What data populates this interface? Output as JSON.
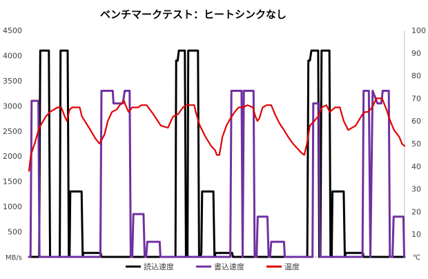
{
  "chart_data": {
    "type": "line",
    "title": "ベンチマークテスト：ヒートシンクなし",
    "y_left": {
      "unit": "MB/s",
      "lim": [
        0,
        4500
      ],
      "ticks": [
        500,
        1000,
        1500,
        2000,
        2500,
        3000,
        3500,
        4000,
        4500
      ]
    },
    "y_right": {
      "unit": "℃",
      "lim": [
        0,
        100
      ],
      "ticks": [
        10,
        20,
        30,
        40,
        50,
        60,
        70,
        80,
        90,
        100
      ]
    },
    "x": {
      "lim": [
        0,
        1000
      ]
    },
    "grid": false,
    "legend_position": "bottom",
    "series": [
      {
        "name": "読込速度",
        "color": "#000000",
        "axis": "left",
        "points": [
          [
            0,
            0
          ],
          [
            27,
            0
          ],
          [
            30,
            4100
          ],
          [
            53,
            4100
          ],
          [
            56,
            0
          ],
          [
            82,
            0
          ],
          [
            84,
            4100
          ],
          [
            103,
            4100
          ],
          [
            106,
            0
          ],
          [
            108,
            0
          ],
          [
            110,
            1300
          ],
          [
            140,
            1300
          ],
          [
            143,
            0
          ],
          [
            145,
            80
          ],
          [
            191,
            80
          ],
          [
            193,
            0
          ],
          [
            390,
            0
          ],
          [
            392,
            3900
          ],
          [
            396,
            3900
          ],
          [
            399,
            4100
          ],
          [
            415,
            4100
          ],
          [
            418,
            0
          ],
          [
            422,
            0
          ],
          [
            424,
            4100
          ],
          [
            450,
            4100
          ],
          [
            453,
            0
          ],
          [
            457,
            0
          ],
          [
            459,
            80
          ],
          [
            461,
            1300
          ],
          [
            491,
            1300
          ],
          [
            494,
            0
          ],
          [
            497,
            80
          ],
          [
            541,
            80
          ],
          [
            543,
            0
          ],
          [
            741,
            0
          ],
          [
            744,
            3900
          ],
          [
            748,
            3900
          ],
          [
            752,
            4100
          ],
          [
            770,
            4100
          ],
          [
            773,
            0
          ],
          [
            776,
            0
          ],
          [
            779,
            4100
          ],
          [
            800,
            4100
          ],
          [
            803,
            0
          ],
          [
            806,
            0
          ],
          [
            808,
            1300
          ],
          [
            838,
            1300
          ],
          [
            841,
            0
          ],
          [
            844,
            80
          ],
          [
            889,
            80
          ],
          [
            891,
            0
          ],
          [
            1000,
            0
          ]
        ]
      },
      {
        "name": "書込速度",
        "color": "#7030A0",
        "axis": "left",
        "points": [
          [
            0,
            0
          ],
          [
            4,
            0
          ],
          [
            7,
            3100
          ],
          [
            25,
            3100
          ],
          [
            28,
            0
          ],
          [
            190,
            0
          ],
          [
            193,
            3300
          ],
          [
            223,
            3300
          ],
          [
            225,
            3050
          ],
          [
            250,
            3050
          ],
          [
            255,
            3300
          ],
          [
            268,
            3300
          ],
          [
            271,
            0
          ],
          [
            275,
            0
          ],
          [
            278,
            850
          ],
          [
            305,
            850
          ],
          [
            308,
            0
          ],
          [
            312,
            0
          ],
          [
            315,
            300
          ],
          [
            348,
            300
          ],
          [
            350,
            0
          ],
          [
            536,
            0
          ],
          [
            539,
            3300
          ],
          [
            566,
            3300
          ],
          [
            569,
            0
          ],
          [
            572,
            3300
          ],
          [
            598,
            3300
          ],
          [
            601,
            0
          ],
          [
            606,
            0
          ],
          [
            609,
            800
          ],
          [
            635,
            800
          ],
          [
            638,
            0
          ],
          [
            642,
            0
          ],
          [
            645,
            300
          ],
          [
            679,
            300
          ],
          [
            681,
            0
          ],
          [
            755,
            0
          ],
          [
            757,
            3050
          ],
          [
            772,
            3050
          ],
          [
            775,
            0
          ],
          [
            888,
            0
          ],
          [
            891,
            3300
          ],
          [
            905,
            3300
          ],
          [
            909,
            0
          ],
          [
            915,
            3300
          ],
          [
            928,
            3050
          ],
          [
            938,
            3050
          ],
          [
            942,
            3300
          ],
          [
            958,
            3300
          ],
          [
            961,
            0
          ],
          [
            968,
            0
          ],
          [
            971,
            800
          ],
          [
            997,
            800
          ],
          [
            999,
            0
          ],
          [
            1000,
            0
          ]
        ]
      },
      {
        "name": "温度",
        "color": "#E00000",
        "axis": "right",
        "points": [
          [
            0,
            38
          ],
          [
            5,
            45
          ],
          [
            15,
            50
          ],
          [
            27,
            57
          ],
          [
            45,
            62
          ],
          [
            56,
            64
          ],
          [
            76,
            66
          ],
          [
            86,
            66
          ],
          [
            95,
            62
          ],
          [
            101,
            60
          ],
          [
            108,
            65
          ],
          [
            115,
            66
          ],
          [
            135,
            66
          ],
          [
            141,
            62
          ],
          [
            160,
            57
          ],
          [
            178,
            52
          ],
          [
            188,
            50
          ],
          [
            201,
            54
          ],
          [
            210,
            60
          ],
          [
            221,
            64
          ],
          [
            233,
            65
          ],
          [
            242,
            67
          ],
          [
            248,
            68
          ],
          [
            253,
            69
          ],
          [
            257,
            67
          ],
          [
            265,
            64
          ],
          [
            275,
            66
          ],
          [
            290,
            66
          ],
          [
            300,
            67
          ],
          [
            313,
            67
          ],
          [
            331,
            63
          ],
          [
            351,
            58
          ],
          [
            370,
            57
          ],
          [
            378,
            60
          ],
          [
            384,
            62
          ],
          [
            397,
            63
          ],
          [
            410,
            66
          ],
          [
            420,
            67
          ],
          [
            440,
            67
          ],
          [
            444,
            64
          ],
          [
            455,
            58
          ],
          [
            470,
            53
          ],
          [
            485,
            49
          ],
          [
            496,
            47
          ],
          [
            500,
            45
          ],
          [
            507,
            45
          ],
          [
            515,
            53
          ],
          [
            526,
            58
          ],
          [
            536,
            61
          ],
          [
            548,
            64
          ],
          [
            558,
            66
          ],
          [
            570,
            66
          ],
          [
            582,
            67
          ],
          [
            596,
            66
          ],
          [
            603,
            62
          ],
          [
            608,
            60
          ],
          [
            613,
            61
          ],
          [
            622,
            66
          ],
          [
            633,
            67
          ],
          [
            645,
            67
          ],
          [
            655,
            63
          ],
          [
            667,
            59
          ],
          [
            679,
            56
          ],
          [
            690,
            53
          ],
          [
            703,
            50
          ],
          [
            714,
            48
          ],
          [
            725,
            46
          ],
          [
            733,
            45
          ],
          [
            740,
            50
          ],
          [
            748,
            58
          ],
          [
            760,
            60
          ],
          [
            770,
            62
          ],
          [
            780,
            66
          ],
          [
            792,
            67
          ],
          [
            801,
            64
          ],
          [
            808,
            65
          ],
          [
            815,
            66
          ],
          [
            828,
            66
          ],
          [
            838,
            60
          ],
          [
            850,
            56
          ],
          [
            870,
            58
          ],
          [
            888,
            63
          ],
          [
            896,
            64
          ],
          [
            903,
            64
          ],
          [
            914,
            66
          ],
          [
            925,
            70
          ],
          [
            940,
            70
          ],
          [
            952,
            65
          ],
          [
            962,
            60
          ],
          [
            972,
            56
          ],
          [
            986,
            53
          ],
          [
            993,
            50
          ],
          [
            1000,
            49
          ]
        ]
      }
    ]
  }
}
